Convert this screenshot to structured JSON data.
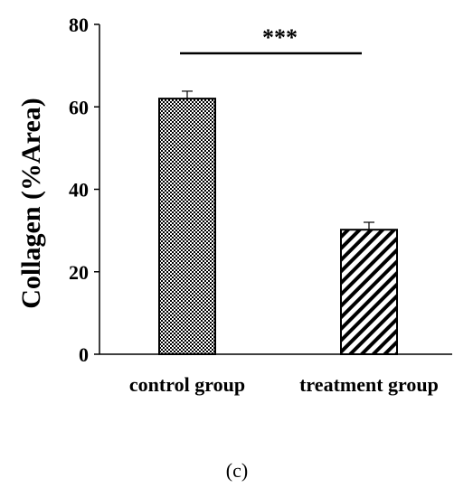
{
  "chart_data": {
    "type": "bar",
    "categories": [
      "control group",
      "treatment group"
    ],
    "values": [
      62,
      30.2
    ],
    "errors": [
      1.8,
      1.8
    ],
    "patterns": [
      "checker",
      "diagonal-hatch"
    ],
    "ylabel": "Collagen (%Area)",
    "xlabel": "",
    "ylim": [
      0,
      80
    ],
    "yticks": [
      0,
      20,
      40,
      60,
      80
    ],
    "grid": false,
    "significance": {
      "text": "***",
      "between": [
        0,
        1
      ]
    },
    "panel_label": "(c)"
  }
}
